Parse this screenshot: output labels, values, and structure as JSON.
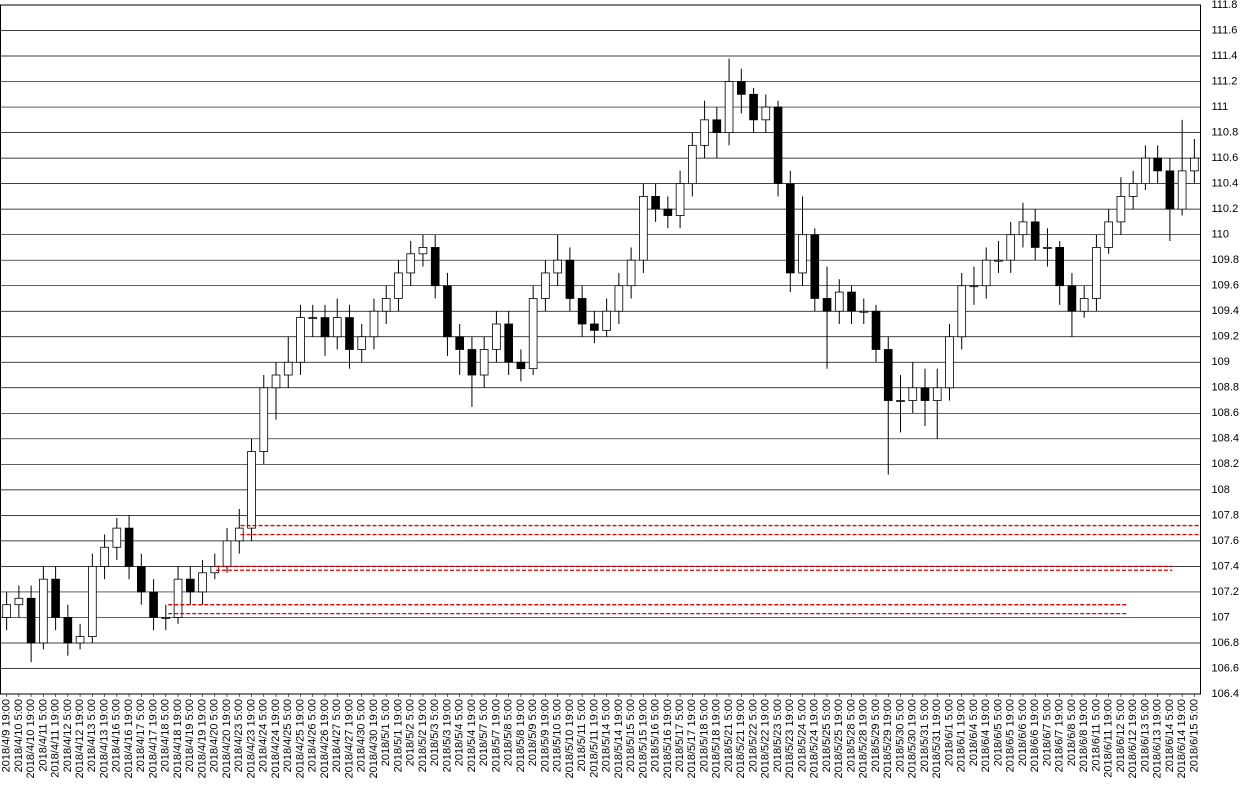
{
  "chart_data": {
    "type": "candlestick",
    "categories": [
      "2018/4/9 19:00",
      "2018/4/10 5:00",
      "2018/4/10 19:00",
      "2018/4/11 5:00",
      "2018/4/11 19:00",
      "2018/4/12 5:00",
      "2018/4/12 19:00",
      "2018/4/13 5:00",
      "2018/4/13 19:00",
      "2018/4/16 5:00",
      "2018/4/16 19:00",
      "2018/4/17 5:00",
      "2018/4/17 19:00",
      "2018/4/18 5:00",
      "2018/4/18 19:00",
      "2018/4/19 5:00",
      "2018/4/19 19:00",
      "2018/4/20 5:00",
      "2018/4/20 19:00",
      "2018/4/23 5:00",
      "2018/4/23 19:00",
      "2018/4/24 5:00",
      "2018/4/24 19:00",
      "2018/4/25 5:00",
      "2018/4/25 19:00",
      "2018/4/26 5:00",
      "2018/4/26 19:00",
      "2018/4/27 5:00",
      "2018/4/27 19:00",
      "2018/4/30 5:00",
      "2018/4/30 19:00",
      "2018/5/1 5:00",
      "2018/5/1 19:00",
      "2018/5/2 5:00",
      "2018/5/2 19:00",
      "2018/5/3 5:00",
      "2018/5/3 19:00",
      "2018/5/4 5:00",
      "2018/5/4 19:00",
      "2018/5/7 5:00",
      "2018/5/7 19:00",
      "2018/5/8 5:00",
      "2018/5/8 19:00",
      "2018/5/9 5:00",
      "2018/5/9 19:00",
      "2018/5/10 5:00",
      "2018/5/10 19:00",
      "2018/5/11 5:00",
      "2018/5/11 19:00",
      "2018/5/14 5:00",
      "2018/5/14 19:00",
      "2018/5/15 5:00",
      "2018/5/15 19:00",
      "2018/5/16 5:00",
      "2018/5/16 19:00",
      "2018/5/17 5:00",
      "2018/5/17 19:00",
      "2018/5/18 5:00",
      "2018/5/18 19:00",
      "2018/5/21 5:00",
      "2018/5/21 19:00",
      "2018/5/22 5:00",
      "2018/5/22 19:00",
      "2018/5/23 5:00",
      "2018/5/23 19:00",
      "2018/5/24 5:00",
      "2018/5/24 19:00",
      "2018/5/25 5:00",
      "2018/5/25 19:00",
      "2018/5/28 5:00",
      "2018/5/28 19:00",
      "2018/5/29 5:00",
      "2018/5/29 19:00",
      "2018/5/30 5:00",
      "2018/5/30 19:00",
      "2018/5/31 5:00",
      "2018/5/31 19:00",
      "2018/6/1 5:00",
      "2018/6/1 19:00",
      "2018/6/4 5:00",
      "2018/6/4 19:00",
      "2018/6/5 5:00",
      "2018/6/5 19:00",
      "2018/6/6 5:00",
      "2018/6/6 19:00",
      "2018/6/7 5:00",
      "2018/6/7 19:00",
      "2018/6/8 5:00",
      "2018/6/8 19:00",
      "2018/6/11 5:00",
      "2018/6/11 19:00",
      "2018/6/12 5:00",
      "2018/6/12 19:00",
      "2018/6/13 5:00",
      "2018/6/13 19:00",
      "2018/6/14 5:00",
      "2018/6/14 19:00",
      "2018/6/15 5:00"
    ],
    "open": [
      107.0,
      107.1,
      107.15,
      106.8,
      107.3,
      107.0,
      106.8,
      106.85,
      107.4,
      107.55,
      107.7,
      107.4,
      107.2,
      107.0,
      107.0,
      107.3,
      107.2,
      107.35,
      107.4,
      107.6,
      107.7,
      108.3,
      108.8,
      108.9,
      109.0,
      109.35,
      109.35,
      109.2,
      109.35,
      109.1,
      109.2,
      109.4,
      109.5,
      109.7,
      109.85,
      109.9,
      109.6,
      109.2,
      109.1,
      108.9,
      109.1,
      109.3,
      109.0,
      108.95,
      109.5,
      109.7,
      109.8,
      109.5,
      109.3,
      109.25,
      109.4,
      109.6,
      109.8,
      110.3,
      110.2,
      110.15,
      110.4,
      110.7,
      110.9,
      110.8,
      111.2,
      111.1,
      110.9,
      111.0,
      110.4,
      109.7,
      110.0,
      109.5,
      109.4,
      109.55,
      109.4,
      109.4,
      109.1,
      108.7,
      108.7,
      108.8,
      108.7,
      108.8,
      109.2,
      109.6,
      109.6,
      109.8,
      109.8,
      110.0,
      110.1,
      109.9,
      109.9,
      109.6,
      109.4,
      109.5,
      109.9,
      110.1,
      110.3,
      110.4,
      110.6,
      110.5,
      110.2,
      110.5
    ],
    "high": [
      107.2,
      107.25,
      107.25,
      107.4,
      107.4,
      107.1,
      106.95,
      107.5,
      107.65,
      107.78,
      107.8,
      107.5,
      107.3,
      107.1,
      107.4,
      107.4,
      107.45,
      107.5,
      107.7,
      107.85,
      108.4,
      108.9,
      109.0,
      109.2,
      109.45,
      109.45,
      109.45,
      109.5,
      109.45,
      109.3,
      109.5,
      109.6,
      109.8,
      109.95,
      110.0,
      110.0,
      109.7,
      109.3,
      109.2,
      109.2,
      109.4,
      109.4,
      109.1,
      109.6,
      109.8,
      110.0,
      109.9,
      109.6,
      109.4,
      109.5,
      109.7,
      109.9,
      110.4,
      110.4,
      110.3,
      110.5,
      110.8,
      111.05,
      111.0,
      111.38,
      111.3,
      111.15,
      111.1,
      111.05,
      110.5,
      110.3,
      110.05,
      109.75,
      109.65,
      109.6,
      109.5,
      109.45,
      109.2,
      108.9,
      109.0,
      108.95,
      108.95,
      109.3,
      109.7,
      109.75,
      109.9,
      109.95,
      110.1,
      110.25,
      110.2,
      110.05,
      109.95,
      109.7,
      109.6,
      110.0,
      110.2,
      110.45,
      110.5,
      110.7,
      110.7,
      110.6,
      110.9,
      110.75
    ],
    "low": [
      106.9,
      107.0,
      106.65,
      106.75,
      106.9,
      106.7,
      106.75,
      106.8,
      107.3,
      107.45,
      107.3,
      107.1,
      106.9,
      106.9,
      106.95,
      107.1,
      107.1,
      107.3,
      107.35,
      107.5,
      107.6,
      108.2,
      108.55,
      108.8,
      108.9,
      109.2,
      109.05,
      109.1,
      108.95,
      109.0,
      109.1,
      109.3,
      109.4,
      109.6,
      109.75,
      109.5,
      109.05,
      108.9,
      108.65,
      108.8,
      109.0,
      108.9,
      108.85,
      108.9,
      109.4,
      109.6,
      109.4,
      109.2,
      109.15,
      109.2,
      109.3,
      109.5,
      109.7,
      110.1,
      110.05,
      110.05,
      110.3,
      110.6,
      110.6,
      110.7,
      110.95,
      110.8,
      110.8,
      110.3,
      109.55,
      109.6,
      109.4,
      108.95,
      109.3,
      109.3,
      109.3,
      109.0,
      108.12,
      108.45,
      108.6,
      108.5,
      108.4,
      108.7,
      109.1,
      109.45,
      109.5,
      109.7,
      109.7,
      109.9,
      109.8,
      109.75,
      109.45,
      109.2,
      109.35,
      109.4,
      109.85,
      110.0,
      110.2,
      110.35,
      110.4,
      109.95,
      110.15,
      110.4
    ],
    "close": [
      107.1,
      107.15,
      106.8,
      107.3,
      107.0,
      106.8,
      106.85,
      107.4,
      107.55,
      107.7,
      107.4,
      107.2,
      107.0,
      107.0,
      107.3,
      107.2,
      107.35,
      107.4,
      107.6,
      107.7,
      108.3,
      108.8,
      108.9,
      109.0,
      109.35,
      109.35,
      109.2,
      109.35,
      109.1,
      109.2,
      109.4,
      109.5,
      109.7,
      109.85,
      109.9,
      109.6,
      109.2,
      109.1,
      108.9,
      109.1,
      109.3,
      109.0,
      108.95,
      109.5,
      109.7,
      109.8,
      109.5,
      109.3,
      109.25,
      109.4,
      109.6,
      109.8,
      110.3,
      110.2,
      110.15,
      110.4,
      110.7,
      110.9,
      110.8,
      111.2,
      111.1,
      110.9,
      111.0,
      110.4,
      109.7,
      110.0,
      109.5,
      109.4,
      109.55,
      109.4,
      109.4,
      109.1,
      108.7,
      108.7,
      108.8,
      108.7,
      108.8,
      109.2,
      109.6,
      109.6,
      109.8,
      109.8,
      110.0,
      110.1,
      109.9,
      109.9,
      109.6,
      109.4,
      109.5,
      109.9,
      110.1,
      110.3,
      110.4,
      110.6,
      110.5,
      110.2,
      110.5,
      110.6
    ],
    "up_color": "#ffffff",
    "down_color": "#000000",
    "edge_color": "#000000",
    "ylim": [
      106.4,
      111.8
    ],
    "yticks": [
      106.4,
      106.6,
      106.8,
      107,
      107.2,
      107.4,
      107.6,
      107.8,
      108,
      108.2,
      108.4,
      108.6,
      108.8,
      109,
      109.2,
      109.4,
      109.6,
      109.8,
      110,
      110.2,
      110.4,
      110.6,
      110.8,
      111,
      111.2,
      111.4,
      111.6,
      111.8
    ],
    "grid": true,
    "hlines": [
      {
        "y": 107.72,
        "x0": 19.6,
        "x1": 98,
        "color": "#e00000"
      },
      {
        "y": 107.65,
        "x0": 19.6,
        "x1": 98,
        "color": "#e00000"
      },
      {
        "y": 107.4,
        "x0": 17.6,
        "x1": 95.7,
        "color": "#e00000"
      },
      {
        "y": 107.37,
        "x0": 17.6,
        "x1": 95.7,
        "color": "#e00000"
      },
      {
        "y": 107.1,
        "x0": 13.7,
        "x1": 92.1,
        "color": "#e00000"
      },
      {
        "y": 107.03,
        "x0": 13.7,
        "x1": 92.1,
        "color": "#e00000"
      }
    ]
  }
}
